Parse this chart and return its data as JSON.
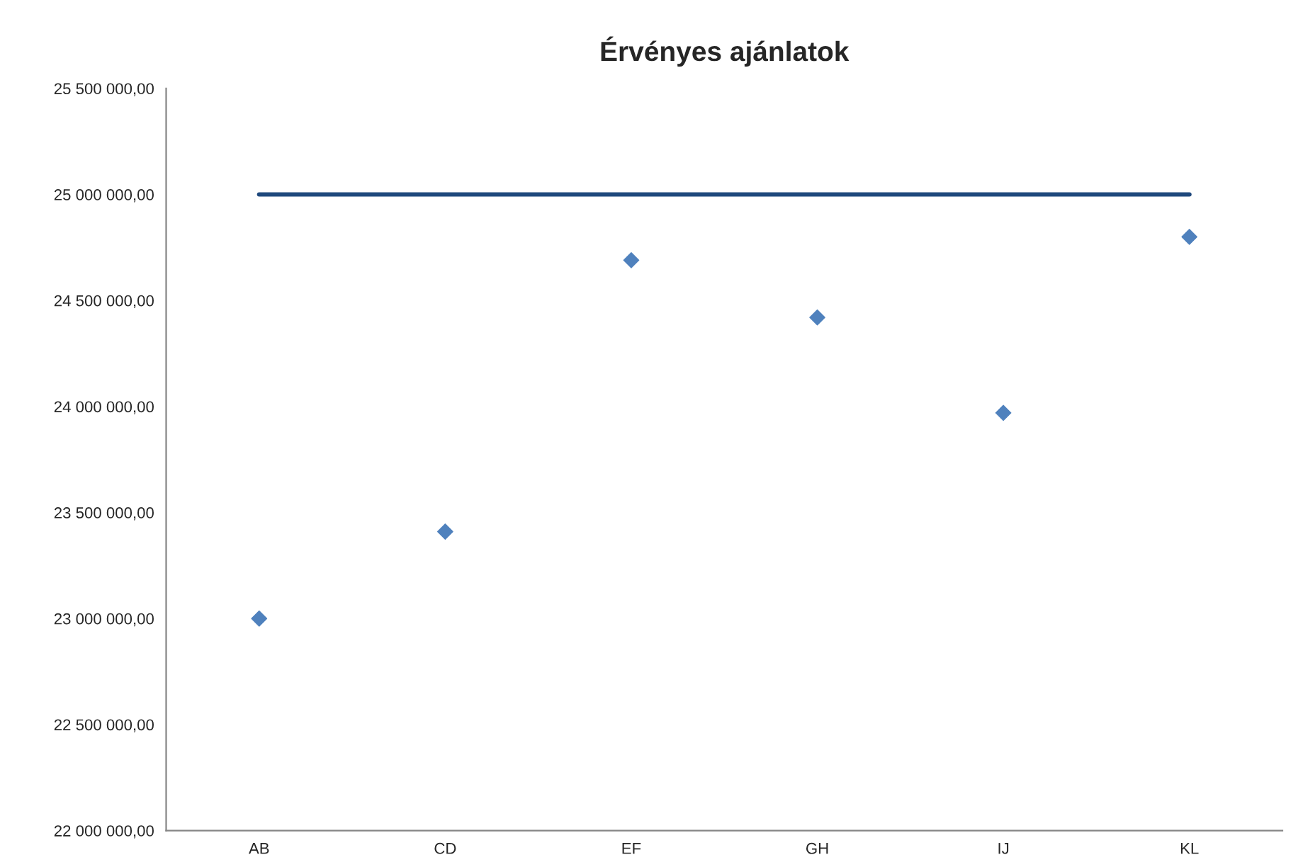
{
  "chart_data": {
    "type": "scatter",
    "title": "Érvényes ajánlatok",
    "categories": [
      "AB",
      "CD",
      "EF",
      "GH",
      "IJ",
      "KL"
    ],
    "series": [
      {
        "color": "#4f81bd",
        "marker": "diamond",
        "values": [
          23000000,
          23410000,
          24690000,
          24420000,
          23970000,
          24800000
        ]
      },
      {
        "type": "line",
        "color": "#1f497d",
        "marker": "none",
        "line_style": "solid",
        "values": [
          25000000,
          25000000,
          25000000,
          25000000,
          25000000,
          25000000
        ]
      }
    ],
    "ylim": [
      22000000,
      25500000
    ],
    "yticks": [
      {
        "value": 22000000,
        "label": "22 000 000,00"
      },
      {
        "value": 22500000,
        "label": "22 500 000,00"
      },
      {
        "value": 23000000,
        "label": "23 000 000,00"
      },
      {
        "value": 23500000,
        "label": "23 500 000,00"
      },
      {
        "value": 24000000,
        "label": "24 000 000,00"
      },
      {
        "value": 24500000,
        "label": "24 500 000,00"
      },
      {
        "value": 25000000,
        "label": "25 000 000,00"
      },
      {
        "value": 25500000,
        "label": "25 500 000,00"
      }
    ],
    "grid": false,
    "legend": false
  }
}
